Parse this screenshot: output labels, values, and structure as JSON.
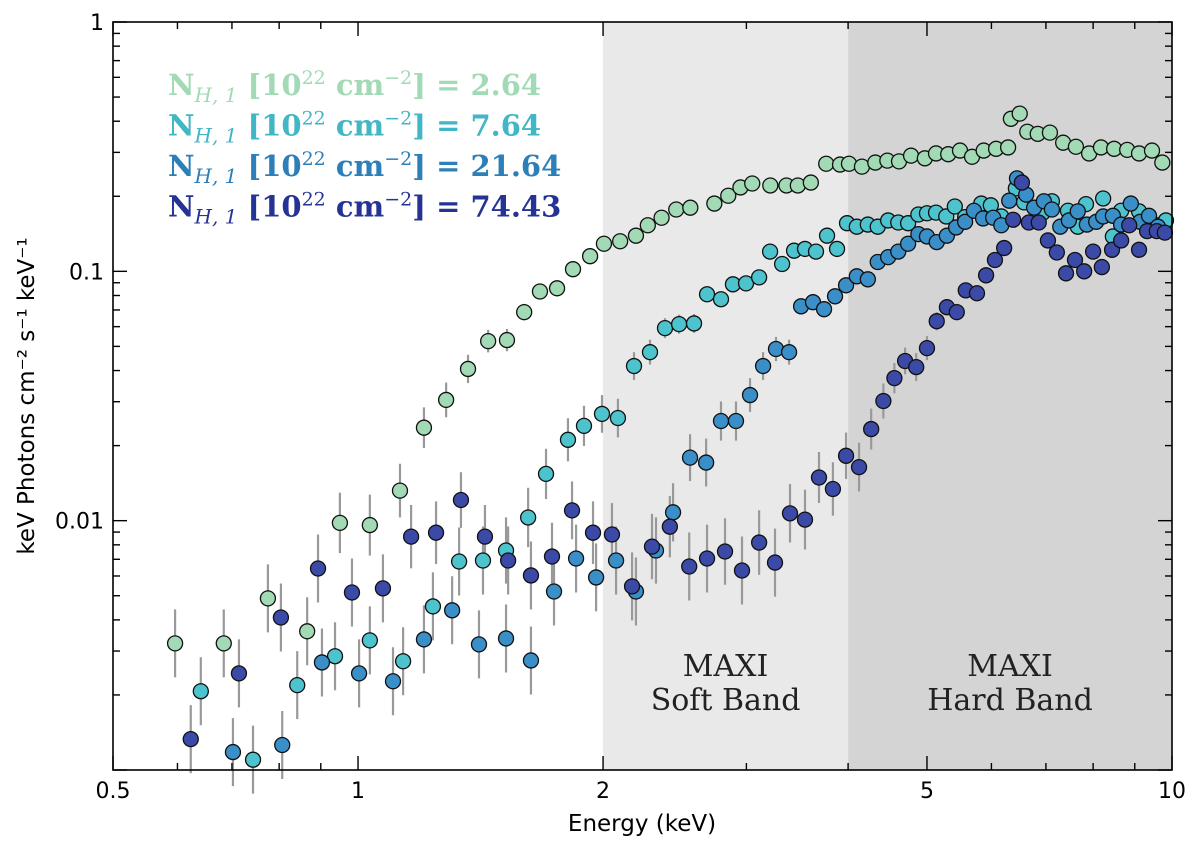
{
  "chart_data": {
    "type": "scatter",
    "xlabel": "Energy (keV)",
    "ylabel": "keV Photons cm⁻² s⁻¹ keV⁻¹",
    "xscale": "log",
    "yscale": "log",
    "xlim": [
      0.5,
      10
    ],
    "ylim": [
      0.001,
      1
    ],
    "xticks": [
      {
        "v": 0.5,
        "label": "0.5"
      },
      {
        "v": 1,
        "label": "1"
      },
      {
        "v": 2,
        "label": "2"
      },
      {
        "v": 5,
        "label": "5"
      },
      {
        "v": 10,
        "label": "10"
      }
    ],
    "yticks": [
      {
        "v": 0.01,
        "label": "0.01"
      },
      {
        "v": 0.1,
        "label": "0.1"
      },
      {
        "v": 1,
        "label": "1"
      }
    ],
    "grid": false,
    "legend_placement": "top-left",
    "bands": [
      {
        "range": [
          2,
          4
        ],
        "label_line1": "MAXI",
        "label_line2": "Soft Band",
        "color": "#e9e9e9"
      },
      {
        "range": [
          4,
          10
        ],
        "label_line1": "MAXI",
        "label_line2": "Hard Band",
        "color": "#d4d4d4"
      }
    ],
    "legend_parts": {
      "N": "N",
      "sub": "H, 1",
      "open": " [10",
      "exp": "22",
      "unit": " cm",
      "uexp": "−2",
      "close": "] = "
    },
    "series": [
      {
        "name": "2.64",
        "color": "#a1dab4",
        "text_color": "#a1dab4",
        "points": [
          [
            0.596,
            0.00322
          ],
          [
            0.684,
            0.00322
          ],
          [
            0.775,
            0.00488
          ],
          [
            0.866,
            0.0036
          ],
          [
            0.95,
            0.0098
          ],
          [
            1.034,
            0.0096
          ],
          [
            1.126,
            0.0132
          ],
          [
            1.205,
            0.0236
          ],
          [
            1.283,
            0.0305
          ],
          [
            1.365,
            0.0406
          ],
          [
            1.445,
            0.0525
          ],
          [
            1.524,
            0.053
          ],
          [
            1.6,
            0.0686
          ],
          [
            1.673,
            0.083
          ],
          [
            1.756,
            0.0855
          ],
          [
            1.837,
            0.102
          ],
          [
            1.928,
            0.115
          ],
          [
            2.005,
            0.129
          ],
          [
            2.099,
            0.132
          ],
          [
            2.195,
            0.139
          ],
          [
            2.27,
            0.153
          ],
          [
            2.36,
            0.164
          ],
          [
            2.46,
            0.177
          ],
          [
            2.56,
            0.18
          ],
          [
            2.74,
            0.187
          ],
          [
            2.85,
            0.201
          ],
          [
            2.95,
            0.217
          ],
          [
            3.05,
            0.225
          ],
          [
            3.21,
            0.221
          ],
          [
            3.36,
            0.221
          ],
          [
            3.47,
            0.221
          ],
          [
            3.6,
            0.227
          ],
          [
            3.76,
            0.27
          ],
          [
            3.91,
            0.268
          ],
          [
            4.01,
            0.27
          ],
          [
            4.16,
            0.263
          ],
          [
            4.32,
            0.273
          ],
          [
            4.47,
            0.278
          ],
          [
            4.62,
            0.276
          ],
          [
            4.78,
            0.291
          ],
          [
            4.97,
            0.284
          ],
          [
            5.13,
            0.297
          ],
          [
            5.31,
            0.295
          ],
          [
            5.49,
            0.305
          ],
          [
            5.68,
            0.288
          ],
          [
            5.87,
            0.305
          ],
          [
            6.08,
            0.31
          ],
          [
            6.29,
            0.314
          ],
          [
            6.34,
            0.409
          ],
          [
            6.5,
            0.429
          ],
          [
            6.64,
            0.363
          ],
          [
            6.84,
            0.356
          ],
          [
            7.08,
            0.36
          ],
          [
            7.35,
            0.328
          ],
          [
            7.62,
            0.316
          ],
          [
            7.91,
            0.297
          ],
          [
            8.18,
            0.314
          ],
          [
            8.49,
            0.31
          ],
          [
            8.81,
            0.307
          ],
          [
            9.11,
            0.297
          ],
          [
            9.45,
            0.305
          ],
          [
            9.73,
            0.273
          ]
        ]
      },
      {
        "name": "7.64",
        "color": "#4cc3cd",
        "text_color": "#41b6c4",
        "points": [
          [
            0.641,
            0.00207
          ],
          [
            0.743,
            0.0011
          ],
          [
            0.842,
            0.00219
          ],
          [
            0.937,
            0.00286
          ],
          [
            1.034,
            0.00331
          ],
          [
            1.136,
            0.00273
          ],
          [
            1.236,
            0.00453
          ],
          [
            1.331,
            0.00686
          ],
          [
            1.424,
            0.00692
          ],
          [
            1.52,
            0.00759
          ],
          [
            1.618,
            0.0103
          ],
          [
            1.702,
            0.0154
          ],
          [
            1.811,
            0.0211
          ],
          [
            1.895,
            0.024
          ],
          [
            1.994,
            0.0268
          ],
          [
            2.086,
            0.0258
          ],
          [
            2.183,
            0.0417
          ],
          [
            2.284,
            0.0474
          ],
          [
            2.383,
            0.0592
          ],
          [
            2.48,
            0.0614
          ],
          [
            2.587,
            0.0618
          ],
          [
            2.684,
            0.0809
          ],
          [
            2.792,
            0.0773
          ],
          [
            2.888,
            0.0887
          ],
          [
            2.997,
            0.0895
          ],
          [
            3.11,
            0.0946
          ],
          [
            3.208,
            0.12
          ],
          [
            3.319,
            0.107
          ],
          [
            3.433,
            0.121
          ],
          [
            3.541,
            0.123
          ],
          [
            3.653,
            0.12
          ],
          [
            3.769,
            0.139
          ],
          [
            3.877,
            0.123
          ],
          [
            3.988,
            0.156
          ],
          [
            4.1,
            0.151
          ],
          [
            4.23,
            0.154
          ],
          [
            4.35,
            0.151
          ],
          [
            4.48,
            0.16
          ],
          [
            4.61,
            0.157
          ],
          [
            4.74,
            0.156
          ],
          [
            4.88,
            0.169
          ],
          [
            5.0,
            0.171
          ],
          [
            5.13,
            0.172
          ],
          [
            5.28,
            0.166
          ],
          [
            5.41,
            0.182
          ],
          [
            5.57,
            0.165
          ],
          [
            5.83,
            0.187
          ],
          [
            5.99,
            0.184
          ],
          [
            6.17,
            0.166
          ],
          [
            6.43,
            0.215
          ],
          [
            6.58,
            0.189
          ],
          [
            6.94,
            0.172
          ],
          [
            7.12,
            0.191
          ],
          [
            7.45,
            0.175
          ],
          [
            7.66,
            0.151
          ],
          [
            7.84,
            0.186
          ],
          [
            8.23,
            0.196
          ],
          [
            8.46,
            0.138
          ],
          [
            8.66,
            0.175
          ],
          [
            9.11,
            0.174
          ],
          [
            9.61,
            0.153
          ],
          [
            9.83,
            0.16
          ]
        ]
      },
      {
        "name": "21.64",
        "color": "#3a8fc8",
        "text_color": "#2c7fb8",
        "points": [
          [
            0.702,
            0.00118
          ],
          [
            0.807,
            0.00126
          ],
          [
            0.903,
            0.0027
          ],
          [
            1.003,
            0.00244
          ],
          [
            1.104,
            0.00227
          ],
          [
            1.205,
            0.00334
          ],
          [
            1.305,
            0.00437
          ],
          [
            1.408,
            0.00319
          ],
          [
            1.52,
            0.00337
          ],
          [
            1.631,
            0.00275
          ],
          [
            1.741,
            0.0052
          ],
          [
            1.853,
            0.00705
          ],
          [
            1.961,
            0.00592
          ],
          [
            2.075,
            0.00692
          ],
          [
            2.195,
            0.0052
          ],
          [
            2.323,
            0.00759
          ],
          [
            2.438,
            0.0108
          ],
          [
            2.558,
            0.0179
          ],
          [
            2.677,
            0.0171
          ],
          [
            2.792,
            0.0251
          ],
          [
            2.913,
            0.0251
          ],
          [
            3.031,
            0.0319
          ],
          [
            3.145,
            0.0417
          ],
          [
            3.262,
            0.0488
          ],
          [
            3.385,
            0.0474
          ],
          [
            3.502,
            0.0724
          ],
          [
            3.622,
            0.0752
          ],
          [
            3.737,
            0.0705
          ],
          [
            3.855,
            0.0794
          ],
          [
            3.977,
            0.0879
          ],
          [
            4.1,
            0.0955
          ],
          [
            4.23,
            0.0929
          ],
          [
            4.35,
            0.109
          ],
          [
            4.48,
            0.114
          ],
          [
            4.61,
            0.12
          ],
          [
            4.74,
            0.129
          ],
          [
            4.88,
            0.141
          ],
          [
            5.0,
            0.138
          ],
          [
            5.14,
            0.131
          ],
          [
            5.29,
            0.139
          ],
          [
            5.43,
            0.15
          ],
          [
            5.57,
            0.158
          ],
          [
            5.71,
            0.175
          ],
          [
            5.86,
            0.163
          ],
          [
            6.03,
            0.164
          ],
          [
            6.17,
            0.153
          ],
          [
            6.31,
            0.192
          ],
          [
            6.45,
            0.236
          ],
          [
            6.62,
            0.203
          ],
          [
            6.77,
            0.18
          ],
          [
            6.96,
            0.191
          ],
          [
            7.12,
            0.177
          ],
          [
            7.29,
            0.151
          ],
          [
            7.47,
            0.16
          ],
          [
            7.66,
            0.174
          ],
          [
            7.86,
            0.154
          ],
          [
            8.07,
            0.158
          ],
          [
            8.23,
            0.166
          ],
          [
            8.46,
            0.167
          ],
          [
            8.66,
            0.154
          ],
          [
            8.9,
            0.187
          ],
          [
            9.14,
            0.158
          ],
          [
            9.37,
            0.167
          ],
          [
            9.61,
            0.151
          ]
        ]
      },
      {
        "name": "74.43",
        "color": "#3b4aa6",
        "text_color": "#253494",
        "points": [
          [
            0.623,
            0.00133
          ],
          [
            0.714,
            0.00244
          ],
          [
            0.804,
            0.00409
          ],
          [
            0.893,
            0.00643
          ],
          [
            0.983,
            0.00515
          ],
          [
            1.073,
            0.00535
          ],
          [
            1.162,
            0.00863
          ],
          [
            1.247,
            0.00895
          ],
          [
            1.338,
            0.0121
          ],
          [
            1.432,
            0.00863
          ],
          [
            1.529,
            0.00692
          ],
          [
            1.631,
            0.00603
          ],
          [
            1.731,
            0.00718
          ],
          [
            1.832,
            0.011
          ],
          [
            1.944,
            0.00895
          ],
          [
            2.051,
            0.0088
          ],
          [
            2.171,
            0.00545
          ],
          [
            2.297,
            0.00787
          ],
          [
            2.416,
            0.00946
          ],
          [
            2.552,
            0.00655
          ],
          [
            2.684,
            0.00705
          ],
          [
            2.824,
            0.00752
          ],
          [
            2.963,
            0.00631
          ],
          [
            3.11,
            0.00817
          ],
          [
            3.253,
            0.00679
          ],
          [
            3.394,
            0.0107
          ],
          [
            3.541,
            0.0101
          ],
          [
            3.684,
            0.0149
          ],
          [
            3.832,
            0.0134
          ],
          [
            3.977,
            0.0182
          ],
          [
            4.126,
            0.0164
          ],
          [
            4.27,
            0.0233
          ],
          [
            4.42,
            0.0302
          ],
          [
            4.56,
            0.0373
          ],
          [
            4.7,
            0.0437
          ],
          [
            4.85,
            0.0413
          ],
          [
            5.0,
            0.0492
          ],
          [
            5.14,
            0.0631
          ],
          [
            5.29,
            0.0718
          ],
          [
            5.44,
            0.0686
          ],
          [
            5.58,
            0.0839
          ],
          [
            5.76,
            0.0817
          ],
          [
            5.91,
            0.0964
          ],
          [
            6.06,
            0.111
          ],
          [
            6.22,
            0.124
          ],
          [
            6.38,
            0.161
          ],
          [
            6.54,
            0.227
          ],
          [
            6.67,
            0.157
          ],
          [
            6.86,
            0.157
          ],
          [
            7.04,
            0.133
          ],
          [
            7.22,
            0.119
          ],
          [
            7.41,
            0.0982
          ],
          [
            7.6,
            0.111
          ],
          [
            7.8,
            0.1
          ],
          [
            8.0,
            0.12
          ],
          [
            8.2,
            0.104
          ],
          [
            8.44,
            0.122
          ],
          [
            8.66,
            0.133
          ],
          [
            8.86,
            0.153
          ],
          [
            9.11,
            0.122
          ],
          [
            9.32,
            0.145
          ],
          [
            9.58,
            0.145
          ],
          [
            9.8,
            0.143
          ]
        ]
      }
    ]
  }
}
